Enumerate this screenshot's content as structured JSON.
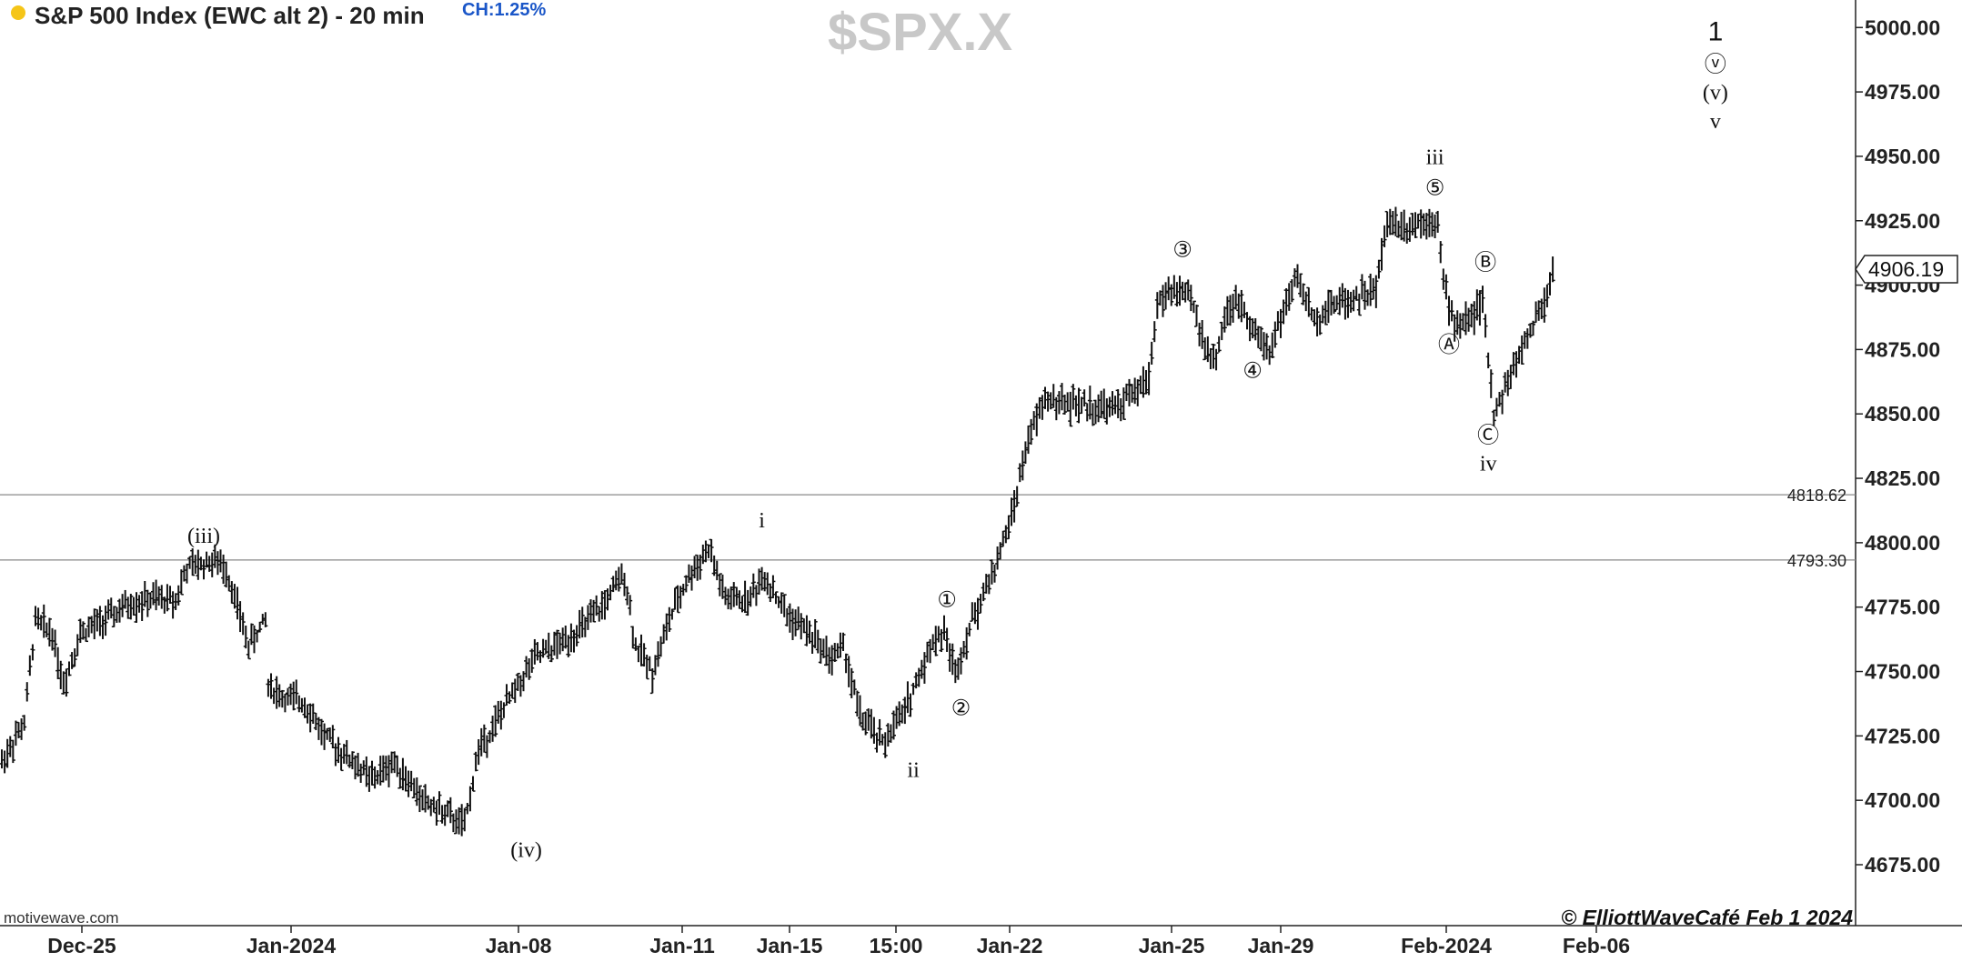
{
  "header": {
    "title": "S&P 500 Index (EWC alt 2) - 20 min",
    "change": "CH:1.25%",
    "status_color": "#f5c518"
  },
  "watermark": "$SPX.X",
  "source": "motivewave.com",
  "copyright": "© ElliottWaveCafé Feb 1 2024",
  "chart_data": {
    "type": "ohlc_bar",
    "y_ticks": [
      "4675.00",
      "4700.00",
      "4725.00",
      "4750.00",
      "4775.00",
      "4800.00",
      "4825.00",
      "4850.00",
      "4875.00",
      "4900.00",
      "4925.00",
      "4950.00",
      "4975.00",
      "5000.00"
    ],
    "x_ticks": [
      "Dec-25",
      "Jan-2024",
      "Jan-08",
      "Jan-11",
      "Jan-15",
      "15:00",
      "Jan-22",
      "Jan-25",
      "Jan-29",
      "Feb-2024",
      "Feb-06"
    ],
    "ylim": [
      4655,
      5007
    ],
    "current_price": "4906.19",
    "reference_lines": [
      {
        "value": 4818.62,
        "label": "4818.62"
      },
      {
        "value": 4793.3,
        "label": "4793.30"
      }
    ],
    "price_path": [
      [
        0,
        4715
      ],
      [
        8,
        4730
      ],
      [
        12,
        4770
      ],
      [
        18,
        4765
      ],
      [
        22,
        4745
      ],
      [
        28,
        4765
      ],
      [
        40,
        4772
      ],
      [
        45,
        4776
      ],
      [
        54,
        4778
      ],
      [
        62,
        4778
      ],
      [
        66,
        4790
      ],
      [
        75,
        4793
      ],
      [
        80,
        4790
      ],
      [
        84,
        4775
      ],
      [
        88,
        4760
      ],
      [
        94,
        4770
      ],
      [
        95,
        4745
      ],
      [
        100,
        4740
      ],
      [
        108,
        4738
      ],
      [
        115,
        4725
      ],
      [
        122,
        4718
      ],
      [
        132,
        4708
      ],
      [
        140,
        4715
      ],
      [
        150,
        4700
      ],
      [
        158,
        4695
      ],
      [
        165,
        4690
      ],
      [
        170,
        4720
      ],
      [
        176,
        4730
      ],
      [
        184,
        4745
      ],
      [
        190,
        4755
      ],
      [
        198,
        4760
      ],
      [
        208,
        4768
      ],
      [
        214,
        4775
      ],
      [
        222,
        4788
      ],
      [
        226,
        4760
      ],
      [
        232,
        4750
      ],
      [
        238,
        4770
      ],
      [
        244,
        4785
      ],
      [
        252,
        4798
      ],
      [
        258,
        4778
      ],
      [
        266,
        4778
      ],
      [
        272,
        4787
      ],
      [
        280,
        4772
      ],
      [
        288,
        4765
      ],
      [
        296,
        4755
      ],
      [
        300,
        4760
      ],
      [
        306,
        4733
      ],
      [
        314,
        4722
      ],
      [
        322,
        4735
      ],
      [
        332,
        4762
      ],
      [
        336,
        4765
      ],
      [
        340,
        4750
      ],
      [
        346,
        4770
      ],
      [
        354,
        4790
      ],
      [
        360,
        4810
      ],
      [
        366,
        4840
      ],
      [
        372,
        4856
      ],
      [
        380,
        4854
      ],
      [
        388,
        4853
      ],
      [
        396,
        4852
      ],
      [
        404,
        4858
      ],
      [
        409,
        4864
      ],
      [
        412,
        4893
      ],
      [
        418,
        4898
      ],
      [
        424,
        4895
      ],
      [
        428,
        4880
      ],
      [
        432,
        4870
      ],
      [
        437,
        4890
      ],
      [
        442,
        4893
      ],
      [
        448,
        4880
      ],
      [
        452,
        4875
      ],
      [
        458,
        4893
      ],
      [
        462,
        4903
      ],
      [
        468,
        4886
      ],
      [
        474,
        4893
      ],
      [
        482,
        4895
      ],
      [
        490,
        4898
      ],
      [
        494,
        4925
      ],
      [
        500,
        4923
      ],
      [
        506,
        4925
      ],
      [
        512,
        4926
      ],
      [
        514,
        4901
      ],
      [
        518,
        4884
      ],
      [
        524,
        4888
      ],
      [
        528,
        4893
      ],
      [
        532,
        4850
      ],
      [
        536,
        4860
      ],
      [
        540,
        4870
      ],
      [
        546,
        4885
      ],
      [
        550,
        4893
      ],
      [
        553,
        4905
      ]
    ],
    "annotations": [
      {
        "text": "(iii)",
        "x": 72,
        "y": 4800
      },
      {
        "text": "(iv)",
        "x": 187,
        "y": 4678
      },
      {
        "text": "i",
        "x": 271,
        "y": 4806
      },
      {
        "text": "ii",
        "x": 325,
        "y": 4709
      },
      {
        "text": "①",
        "x": 337,
        "y": 4775
      },
      {
        "text": "②",
        "x": 342,
        "y": 4733
      },
      {
        "text": "③",
        "x": 421,
        "y": 4911
      },
      {
        "text": "④",
        "x": 446,
        "y": 4864
      },
      {
        "text": "iii",
        "x": 511,
        "y": 4947
      },
      {
        "text": "⑤",
        "x": 511,
        "y": 4935
      },
      {
        "text": "Ⓐ",
        "x": 516,
        "y": 4874
      },
      {
        "text": "Ⓑ",
        "x": 529,
        "y": 4906
      },
      {
        "text": "Ⓒ",
        "x": 530,
        "y": 4839
      },
      {
        "text": "iv",
        "x": 530,
        "y": 4828
      },
      {
        "text": "1",
        "x": 611,
        "y": 4995
      },
      {
        "text": "ⓥ",
        "x": 611,
        "y": 4983
      },
      {
        "text": "(v)",
        "x": 611,
        "y": 4972
      },
      {
        "text": "v",
        "x": 611,
        "y": 4961
      }
    ]
  }
}
